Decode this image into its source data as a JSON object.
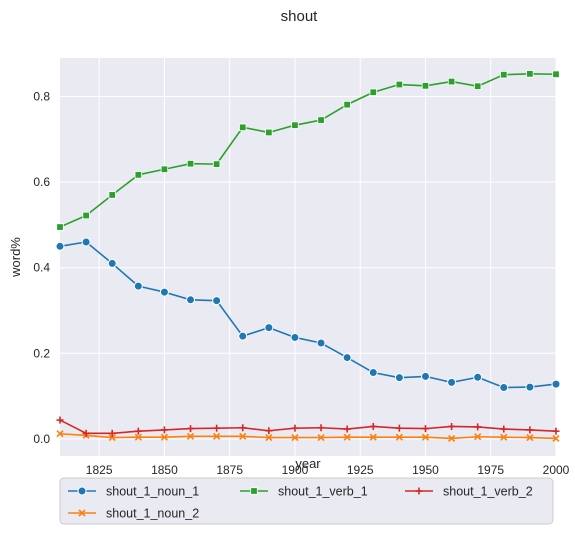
{
  "chart_data": {
    "type": "line",
    "title": "shout",
    "xlabel": "year",
    "ylabel": "word%",
    "xlim": [
      1810,
      2000
    ],
    "ylim": [
      -0.04,
      0.89
    ],
    "xticks": [
      1825,
      1850,
      1875,
      1900,
      1925,
      1950,
      1975,
      2000
    ],
    "yticks": [
      0.0,
      0.2,
      0.4,
      0.6,
      0.8
    ],
    "ytick_labels": [
      "0.0",
      "0.2",
      "0.4",
      "0.6",
      "0.8"
    ],
    "grid": true,
    "legend_position": "bottom, below plot",
    "background": "#eaeaf2",
    "x": [
      1810,
      1820,
      1830,
      1840,
      1850,
      1860,
      1870,
      1880,
      1890,
      1900,
      1910,
      1920,
      1930,
      1940,
      1950,
      1960,
      1970,
      1980,
      1990,
      2000
    ],
    "series": [
      {
        "name": "shout_1_noun_1",
        "color": "#1f77b4",
        "marker": "circle",
        "values": [
          0.45,
          0.46,
          0.41,
          0.357,
          0.343,
          0.325,
          0.323,
          0.24,
          0.26,
          0.237,
          0.224,
          0.19,
          0.155,
          0.143,
          0.146,
          0.132,
          0.144,
          0.12,
          0.121,
          0.128
        ]
      },
      {
        "name": "shout_1_noun_2",
        "color": "#ff7f0e",
        "marker": "x",
        "values": [
          0.012,
          0.008,
          0.003,
          0.004,
          0.004,
          0.006,
          0.006,
          0.006,
          0.003,
          0.003,
          0.003,
          0.004,
          0.004,
          0.004,
          0.004,
          0.001,
          0.005,
          0.004,
          0.003,
          0.001
        ]
      },
      {
        "name": "shout_1_verb_1",
        "color": "#2ca02c",
        "marker": "square",
        "values": [
          0.495,
          0.522,
          0.57,
          0.617,
          0.63,
          0.643,
          0.642,
          0.728,
          0.716,
          0.733,
          0.745,
          0.781,
          0.81,
          0.828,
          0.825,
          0.835,
          0.824,
          0.851,
          0.853,
          0.852
        ]
      },
      {
        "name": "shout_1_verb_2",
        "color": "#d62728",
        "marker": "plus",
        "values": [
          0.044,
          0.013,
          0.013,
          0.018,
          0.021,
          0.024,
          0.025,
          0.026,
          0.019,
          0.025,
          0.026,
          0.023,
          0.029,
          0.025,
          0.024,
          0.029,
          0.028,
          0.023,
          0.021,
          0.018
        ]
      }
    ]
  }
}
